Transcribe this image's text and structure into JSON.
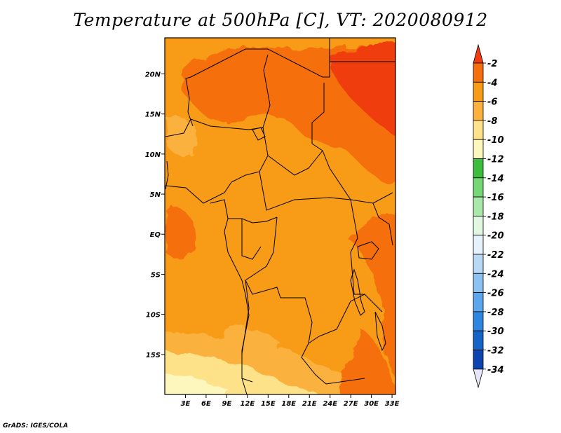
{
  "title": "Temperature at 500hPa [C], VT: 2020080912",
  "credit": "GrADS: IGES/COLA",
  "map": {
    "lon_range": [
      0,
      33.5
    ],
    "lat_range": [
      -20,
      24.5
    ],
    "lat_ticks": [
      {
        "value": 20,
        "label": "20N"
      },
      {
        "value": 15,
        "label": "15N"
      },
      {
        "value": 10,
        "label": "10N"
      },
      {
        "value": 5,
        "label": "5N"
      },
      {
        "value": 0,
        "label": "EQ"
      },
      {
        "value": -5,
        "label": "5S"
      },
      {
        "value": -10,
        "label": "10S"
      },
      {
        "value": -15,
        "label": "15S"
      }
    ],
    "lon_ticks": [
      {
        "value": 3,
        "label": "3E"
      },
      {
        "value": 6,
        "label": "6E"
      },
      {
        "value": 9,
        "label": "9E"
      },
      {
        "value": 12,
        "label": "12E"
      },
      {
        "value": 15,
        "label": "15E"
      },
      {
        "value": 18,
        "label": "18E"
      },
      {
        "value": 21,
        "label": "21E"
      },
      {
        "value": 24,
        "label": "24E"
      },
      {
        "value": 27,
        "label": "27E"
      },
      {
        "value": 30,
        "label": "30E"
      },
      {
        "value": 33,
        "label": "33E"
      }
    ],
    "fill_colors": {
      "lt_-8": "#fde28a",
      "-8_-6": "#fbb13c",
      "-6_-4": "#f89c18",
      "-4_-2": "#f56f10",
      "gt_-2": "#f03c10"
    }
  },
  "colorbar": {
    "levels": [
      "-2",
      "-4",
      "-6",
      "-8",
      "-10",
      "-12",
      "-14",
      "-16",
      "-18",
      "-20",
      "-22",
      "-24",
      "-26",
      "-28",
      "-30",
      "-32",
      "-34"
    ],
    "colors": [
      "#f03c10",
      "#f56f10",
      "#f89c18",
      "#fbb13c",
      "#fde28a",
      "#fdf6bd",
      "#3cbe3c",
      "#76d776",
      "#a8e8a8",
      "#e0f8e0",
      "#e6f2fb",
      "#b8d9f6",
      "#8cc2f1",
      "#5ba6ec",
      "#2f86e0",
      "#1565c8",
      "#0d44b0",
      "#0c1a78"
    ]
  }
}
